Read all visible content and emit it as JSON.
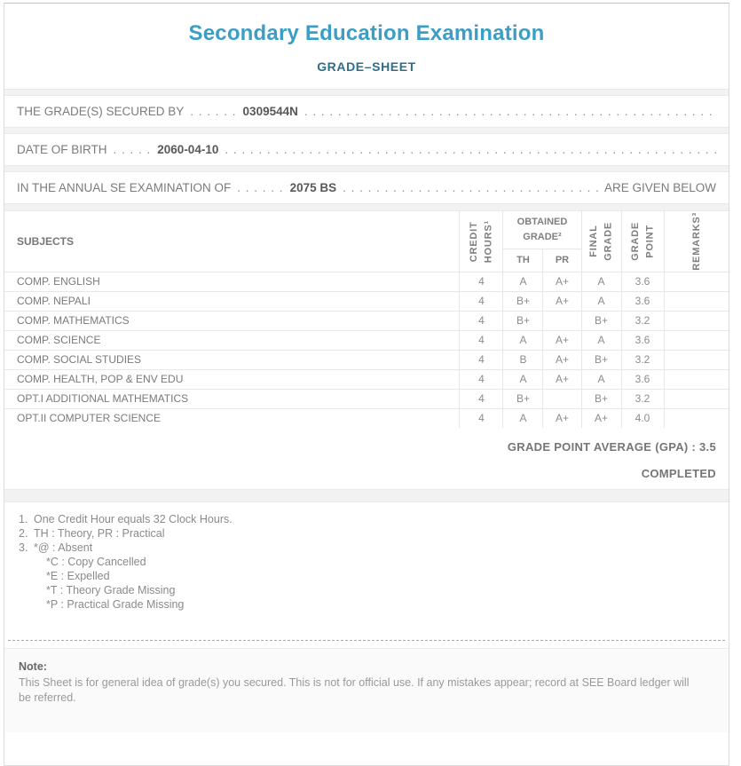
{
  "colors": {
    "title_blue": "#3c9ec4",
    "subtitle_teal": "#2c6e8c"
  },
  "header": {
    "title": "Secondary Education Examination",
    "subtitle": "GRADE–SHEET"
  },
  "info_lines": [
    {
      "label": "THE GRADE(S) SECURED BY",
      "dots": ". . . . . .",
      "value": "0309544N",
      "suffix": ""
    },
    {
      "label": "DATE OF BIRTH",
      "dots": ". . . . .",
      "value": "2060-04-10",
      "suffix": ""
    },
    {
      "label": "IN THE ANNUAL SE EXAMINATION OF",
      "dots": ". . . . . .",
      "value": "2075 BS",
      "suffix": "ARE GIVEN BELOW"
    }
  ],
  "leader": ". . . . . . . . . . . . . . . . . . . . . . . . . . . . . . . . . . . . . . . . . . . . . . . . . . . . . . . . . . . . . . . . . . . . . . . . . . . . . . . . . . . . . . . . . . . . . . . . . . . .",
  "table": {
    "headers": {
      "subjects": "SUBJECTS",
      "credit_hours": "CREDIT\nHOURS¹",
      "obtained_grade": "OBTAINED\nGRADE²",
      "th": "TH",
      "pr": "PR",
      "final_grade": "FINAL\nGRADE",
      "grade_point": "GRADE\nPOINT",
      "remarks": "REMARKS³"
    },
    "rows": [
      {
        "subject": "COMP. ENGLISH",
        "credit_hours": "4",
        "th": "A",
        "pr": "A+",
        "final_grade": "A",
        "grade_point": "3.6",
        "remarks": ""
      },
      {
        "subject": "COMP. NEPALI",
        "credit_hours": "4",
        "th": "B+",
        "pr": "A+",
        "final_grade": "A",
        "grade_point": "3.6",
        "remarks": ""
      },
      {
        "subject": "COMP. MATHEMATICS",
        "credit_hours": "4",
        "th": "B+",
        "pr": "",
        "final_grade": "B+",
        "grade_point": "3.2",
        "remarks": ""
      },
      {
        "subject": "COMP. SCIENCE",
        "credit_hours": "4",
        "th": "A",
        "pr": "A+",
        "final_grade": "A",
        "grade_point": "3.6",
        "remarks": ""
      },
      {
        "subject": "COMP. SOCIAL STUDIES",
        "credit_hours": "4",
        "th": "B",
        "pr": "A+",
        "final_grade": "B+",
        "grade_point": "3.2",
        "remarks": ""
      },
      {
        "subject": "COMP. HEALTH, POP & ENV EDU",
        "credit_hours": "4",
        "th": "A",
        "pr": "A+",
        "final_grade": "A",
        "grade_point": "3.6",
        "remarks": ""
      },
      {
        "subject": "OPT.I ADDITIONAL MATHEMATICS",
        "credit_hours": "4",
        "th": "B+",
        "pr": "",
        "final_grade": "B+",
        "grade_point": "3.2",
        "remarks": ""
      },
      {
        "subject": "OPT.II COMPUTER SCIENCE",
        "credit_hours": "4",
        "th": "A",
        "pr": "A+",
        "final_grade": "A+",
        "grade_point": "4.0",
        "remarks": ""
      }
    ]
  },
  "summary": {
    "gpa_label": "GRADE POINT AVERAGE (GPA)",
    "gpa_separator": " : ",
    "gpa_value": "3.5",
    "status": "COMPLETED"
  },
  "footnotes": {
    "items": [
      {
        "num": "1.",
        "text": "One Credit Hour equals 32 Clock Hours.",
        "sub": []
      },
      {
        "num": "2.",
        "text": "TH : Theory, PR : Practical",
        "sub": []
      },
      {
        "num": "3.",
        "text": "*@ : Absent",
        "sub": [
          "*C : Copy Cancelled",
          "*E : Expelled",
          "*T : Theory Grade Missing",
          "*P : Practical Grade Missing"
        ]
      }
    ]
  },
  "note": {
    "title": "Note:",
    "text": "This Sheet is for general idea of grade(s) you secured. This is not for official use. If any mistakes appear; record at SEE Board ledger will be referred."
  }
}
